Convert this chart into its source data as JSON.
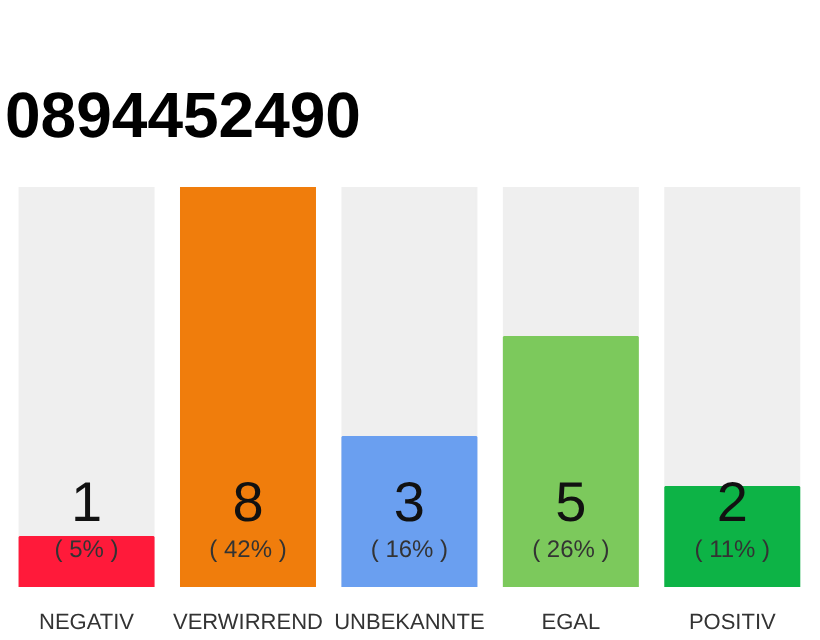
{
  "chart_data": {
    "type": "bar",
    "title": "0894452490",
    "categories": [
      "NEGATIV",
      "VERWIRREND",
      "UNBEKANNTE",
      "EGAL",
      "POSITIV"
    ],
    "values": [
      1,
      8,
      3,
      5,
      2
    ],
    "colors": [
      "#ff1a3a",
      "#f07d0c",
      "#6a9ff0",
      "#7cc95c",
      "#0db346"
    ],
    "ylim": [
      0,
      8
    ],
    "tick_labels": "x",
    "grid": false,
    "data_labels": true,
    "annotations": [
      "( 5% )",
      "( 42% )",
      "( 16% )",
      "( 26% )",
      "( 11% )"
    ]
  }
}
